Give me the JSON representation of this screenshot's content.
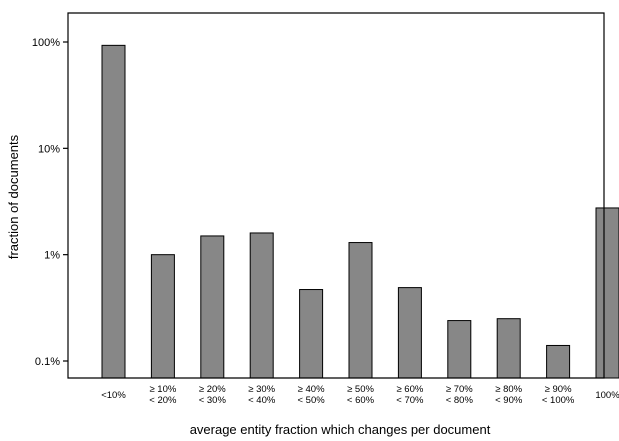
{
  "chart_data": {
    "type": "bar",
    "title": "",
    "xlabel": "average entity fraction which changes per document",
    "ylabel": "fraction of documents",
    "yscale": "log",
    "ylim": [
      0.075,
      200
    ],
    "y_ticks": [
      {
        "value": 0.1,
        "label": "0.1%"
      },
      {
        "value": 1,
        "label": "1%"
      },
      {
        "value": 10,
        "label": "10%"
      },
      {
        "value": 100,
        "label": "100%"
      }
    ],
    "y_unit": "%",
    "grid": false,
    "categories": [
      [
        "<10%"
      ],
      [
        "≥ 10%",
        "< 20%"
      ],
      [
        "≥ 20%",
        "< 30%"
      ],
      [
        "≥ 30%",
        "< 40%"
      ],
      [
        "≥ 40%",
        "< 50%"
      ],
      [
        "≥ 50%",
        "< 60%"
      ],
      [
        "≥ 60%",
        "< 70%"
      ],
      [
        "≥ 70%",
        "< 80%"
      ],
      [
        "≥ 80%",
        "< 90%"
      ],
      [
        "≥ 90%",
        "< 100%"
      ],
      [
        "100%"
      ]
    ],
    "values": [
      93,
      1.0,
      1.5,
      1.6,
      0.47,
      1.3,
      0.49,
      0.24,
      0.25,
      0.14,
      2.75
    ],
    "bar_color": "#878787"
  }
}
